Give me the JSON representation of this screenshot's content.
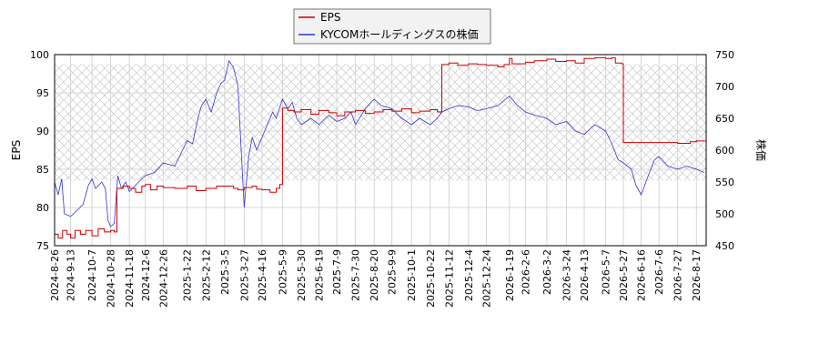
{
  "chart_data": {
    "type": "line",
    "title": "",
    "xlabel": "",
    "ylabel_left": "EPS",
    "ylabel_right": "株価",
    "ylim_left": [
      75,
      100
    ],
    "yticks_left": [
      75,
      80,
      85,
      90,
      95,
      100
    ],
    "ylim_right": [
      450,
      750
    ],
    "yticks_right": [
      450,
      500,
      550,
      600,
      650,
      700,
      750
    ],
    "xlim": [
      "2024-08-26",
      "2026-08-28"
    ],
    "x_ticks": [
      "2024-8-26",
      "2024-9-13",
      "2024-10-7",
      "2024-10-28",
      "2024-11-18",
      "2024-12-6",
      "2024-12-26",
      "2025-1-22",
      "2025-2-12",
      "2025-3-5",
      "2025-3-27",
      "2025-4-16",
      "2025-5-9",
      "2025-5-30",
      "2025-6-19",
      "2025-7-9",
      "2025-7-30",
      "2025-8-20",
      "2025-9-9",
      "2025-10-1",
      "2025-10-22",
      "2025-11-12",
      "2025-12-4",
      "2025-12-24",
      "2026-1-19",
      "2026-2-6",
      "2026-3-2",
      "2026-3-24",
      "2026-4-13",
      "2026-5-7",
      "2026-5-27",
      "2026-6-16",
      "2026-7-6",
      "2026-7-27",
      "2026-8-17"
    ],
    "grid": true,
    "legend_position": "top-center",
    "shaded_band_right_axis": [
      552,
      735
    ],
    "series": [
      {
        "name": "EPS",
        "axis": "left",
        "color": "#cc0000",
        "points": [
          [
            "2024-08-26",
            76.5
          ],
          [
            "2024-08-30",
            76.0
          ],
          [
            "2024-09-04",
            77.0
          ],
          [
            "2024-09-09",
            76.5
          ],
          [
            "2024-09-13",
            76.0
          ],
          [
            "2024-09-18",
            77.0
          ],
          [
            "2024-09-24",
            76.5
          ],
          [
            "2024-09-30",
            77.0
          ],
          [
            "2024-10-07",
            76.3
          ],
          [
            "2024-10-14",
            77.2
          ],
          [
            "2024-10-21",
            76.8
          ],
          [
            "2024-10-28",
            77.0
          ],
          [
            "2024-11-01",
            76.8
          ],
          [
            "2024-11-04",
            82.5
          ],
          [
            "2024-11-11",
            82.8
          ],
          [
            "2024-11-18",
            82.5
          ],
          [
            "2024-11-25",
            82.0
          ],
          [
            "2024-12-02",
            82.8
          ],
          [
            "2024-12-06",
            83.0
          ],
          [
            "2024-12-12",
            82.3
          ],
          [
            "2024-12-19",
            82.8
          ],
          [
            "2024-12-26",
            82.6
          ],
          [
            "2025-01-08",
            82.5
          ],
          [
            "2025-01-22",
            82.8
          ],
          [
            "2025-02-01",
            82.2
          ],
          [
            "2025-02-12",
            82.5
          ],
          [
            "2025-02-24",
            82.8
          ],
          [
            "2025-03-05",
            82.8
          ],
          [
            "2025-03-15",
            82.5
          ],
          [
            "2025-03-20",
            82.3
          ],
          [
            "2025-03-27",
            82.6
          ],
          [
            "2025-04-05",
            82.8
          ],
          [
            "2025-04-10",
            82.4
          ],
          [
            "2025-04-16",
            82.3
          ],
          [
            "2025-04-25",
            82.0
          ],
          [
            "2025-05-02",
            82.5
          ],
          [
            "2025-05-06",
            83.0
          ],
          [
            "2025-05-09",
            93.0
          ],
          [
            "2025-05-15",
            92.7
          ],
          [
            "2025-05-22",
            92.5
          ],
          [
            "2025-05-30",
            92.8
          ],
          [
            "2025-06-10",
            92.2
          ],
          [
            "2025-06-19",
            92.7
          ],
          [
            "2025-06-30",
            92.4
          ],
          [
            "2025-07-09",
            92.0
          ],
          [
            "2025-07-18",
            92.5
          ],
          [
            "2025-07-30",
            92.7
          ],
          [
            "2025-08-10",
            92.3
          ],
          [
            "2025-08-20",
            92.5
          ],
          [
            "2025-08-30",
            92.8
          ],
          [
            "2025-09-09",
            92.6
          ],
          [
            "2025-09-20",
            92.9
          ],
          [
            "2025-10-01",
            92.4
          ],
          [
            "2025-10-10",
            92.6
          ],
          [
            "2025-10-22",
            92.8
          ],
          [
            "2025-10-30",
            92.5
          ],
          [
            "2025-11-04",
            98.7
          ],
          [
            "2025-11-12",
            98.9
          ],
          [
            "2025-11-22",
            98.6
          ],
          [
            "2025-12-04",
            98.8
          ],
          [
            "2025-12-14",
            98.7
          ],
          [
            "2025-12-24",
            98.6
          ],
          [
            "2026-01-06",
            98.4
          ],
          [
            "2026-01-13",
            98.7
          ],
          [
            "2026-01-19",
            99.5
          ],
          [
            "2026-01-22",
            98.8
          ],
          [
            "2026-02-06",
            99.0
          ],
          [
            "2026-02-16",
            99.2
          ],
          [
            "2026-03-02",
            99.4
          ],
          [
            "2026-03-12",
            99.1
          ],
          [
            "2026-03-24",
            99.2
          ],
          [
            "2026-04-03",
            98.9
          ],
          [
            "2026-04-13",
            99.5
          ],
          [
            "2026-04-25",
            99.6
          ],
          [
            "2026-05-07",
            99.5
          ],
          [
            "2026-05-14",
            99.6
          ],
          [
            "2026-05-18",
            98.9
          ],
          [
            "2026-05-25",
            98.8
          ],
          [
            "2026-05-27",
            88.5
          ],
          [
            "2026-06-16",
            88.5
          ],
          [
            "2026-07-06",
            88.5
          ],
          [
            "2026-07-27",
            88.4
          ],
          [
            "2026-08-10",
            88.6
          ],
          [
            "2026-08-17",
            88.7
          ],
          [
            "2026-08-26",
            88.8
          ]
        ]
      },
      {
        "name": "KYCOMホールディングスの株価",
        "axis": "right",
        "color": "#3333cc",
        "points": [
          [
            "2024-08-26",
            550
          ],
          [
            "2024-08-30",
            530
          ],
          [
            "2024-09-03",
            555
          ],
          [
            "2024-09-06",
            500
          ],
          [
            "2024-09-13",
            496
          ],
          [
            "2024-09-20",
            505
          ],
          [
            "2024-09-27",
            515
          ],
          [
            "2024-10-03",
            545
          ],
          [
            "2024-10-07",
            555
          ],
          [
            "2024-10-11",
            540
          ],
          [
            "2024-10-18",
            550
          ],
          [
            "2024-10-22",
            540
          ],
          [
            "2024-10-25",
            490
          ],
          [
            "2024-10-28",
            480
          ],
          [
            "2024-11-01",
            485
          ],
          [
            "2024-11-05",
            560
          ],
          [
            "2024-11-09",
            540
          ],
          [
            "2024-11-14",
            550
          ],
          [
            "2024-11-18",
            535
          ],
          [
            "2024-11-25",
            545
          ],
          [
            "2024-12-02",
            555
          ],
          [
            "2024-12-06",
            560
          ],
          [
            "2024-12-16",
            565
          ],
          [
            "2024-12-26",
            580
          ],
          [
            "2025-01-08",
            575
          ],
          [
            "2025-01-15",
            595
          ],
          [
            "2025-01-22",
            615
          ],
          [
            "2025-01-28",
            610
          ],
          [
            "2025-02-03",
            650
          ],
          [
            "2025-02-07",
            670
          ],
          [
            "2025-02-12",
            680
          ],
          [
            "2025-02-18",
            660
          ],
          [
            "2025-02-24",
            690
          ],
          [
            "2025-03-01",
            705
          ],
          [
            "2025-03-05",
            710
          ],
          [
            "2025-03-10",
            740
          ],
          [
            "2025-03-15",
            730
          ],
          [
            "2025-03-20",
            700
          ],
          [
            "2025-03-24",
            590
          ],
          [
            "2025-03-27",
            510
          ],
          [
            "2025-04-01",
            590
          ],
          [
            "2025-04-05",
            620
          ],
          [
            "2025-04-10",
            600
          ],
          [
            "2025-04-16",
            620
          ],
          [
            "2025-04-22",
            640
          ],
          [
            "2025-04-28",
            660
          ],
          [
            "2025-05-02",
            650
          ],
          [
            "2025-05-09",
            680
          ],
          [
            "2025-05-15",
            665
          ],
          [
            "2025-05-20",
            675
          ],
          [
            "2025-05-25",
            650
          ],
          [
            "2025-05-30",
            640
          ],
          [
            "2025-06-10",
            650
          ],
          [
            "2025-06-19",
            640
          ],
          [
            "2025-06-30",
            655
          ],
          [
            "2025-07-09",
            645
          ],
          [
            "2025-07-18",
            650
          ],
          [
            "2025-07-25",
            660
          ],
          [
            "2025-07-30",
            640
          ],
          [
            "2025-08-10",
            665
          ],
          [
            "2025-08-20",
            680
          ],
          [
            "2025-08-28",
            670
          ],
          [
            "2025-09-09",
            665
          ],
          [
            "2025-09-20",
            650
          ],
          [
            "2025-10-01",
            640
          ],
          [
            "2025-10-10",
            650
          ],
          [
            "2025-10-22",
            640
          ],
          [
            "2025-10-30",
            650
          ],
          [
            "2025-11-04",
            660
          ],
          [
            "2025-11-12",
            665
          ],
          [
            "2025-11-22",
            670
          ],
          [
            "2025-12-04",
            668
          ],
          [
            "2025-12-14",
            662
          ],
          [
            "2025-12-24",
            665
          ],
          [
            "2026-01-06",
            670
          ],
          [
            "2026-01-19",
            685
          ],
          [
            "2026-01-28",
            670
          ],
          [
            "2026-02-06",
            660
          ],
          [
            "2026-02-16",
            655
          ],
          [
            "2026-03-02",
            650
          ],
          [
            "2026-03-12",
            640
          ],
          [
            "2026-03-24",
            645
          ],
          [
            "2026-04-03",
            630
          ],
          [
            "2026-04-13",
            625
          ],
          [
            "2026-04-25",
            640
          ],
          [
            "2026-05-07",
            630
          ],
          [
            "2026-05-14",
            610
          ],
          [
            "2026-05-21",
            585
          ],
          [
            "2026-05-27",
            580
          ],
          [
            "2026-06-05",
            570
          ],
          [
            "2026-06-10",
            545
          ],
          [
            "2026-06-16",
            530
          ],
          [
            "2026-06-24",
            560
          ],
          [
            "2026-07-01",
            585
          ],
          [
            "2026-07-06",
            590
          ],
          [
            "2026-07-16",
            575
          ],
          [
            "2026-07-27",
            570
          ],
          [
            "2026-08-06",
            575
          ],
          [
            "2026-08-17",
            570
          ],
          [
            "2026-08-26",
            565
          ]
        ]
      }
    ]
  }
}
